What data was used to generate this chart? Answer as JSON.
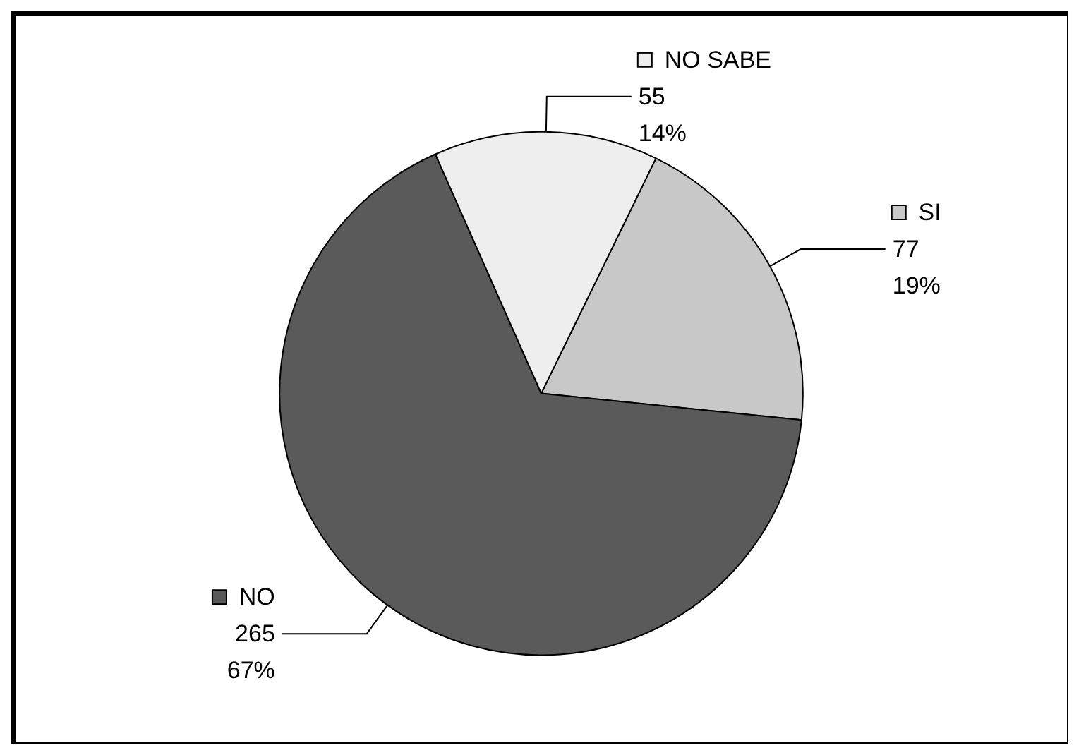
{
  "chart_data": {
    "type": "pie",
    "categories": [
      "SI",
      "NO",
      "NO SABE"
    ],
    "values": [
      77,
      265,
      55
    ],
    "colors": [
      "#c8c8c8",
      "#5a5a5a",
      "#eeeeee"
    ],
    "value_labels": [
      "77\n19%",
      "265\n67%",
      "55\n14%"
    ],
    "legend": "right"
  }
}
